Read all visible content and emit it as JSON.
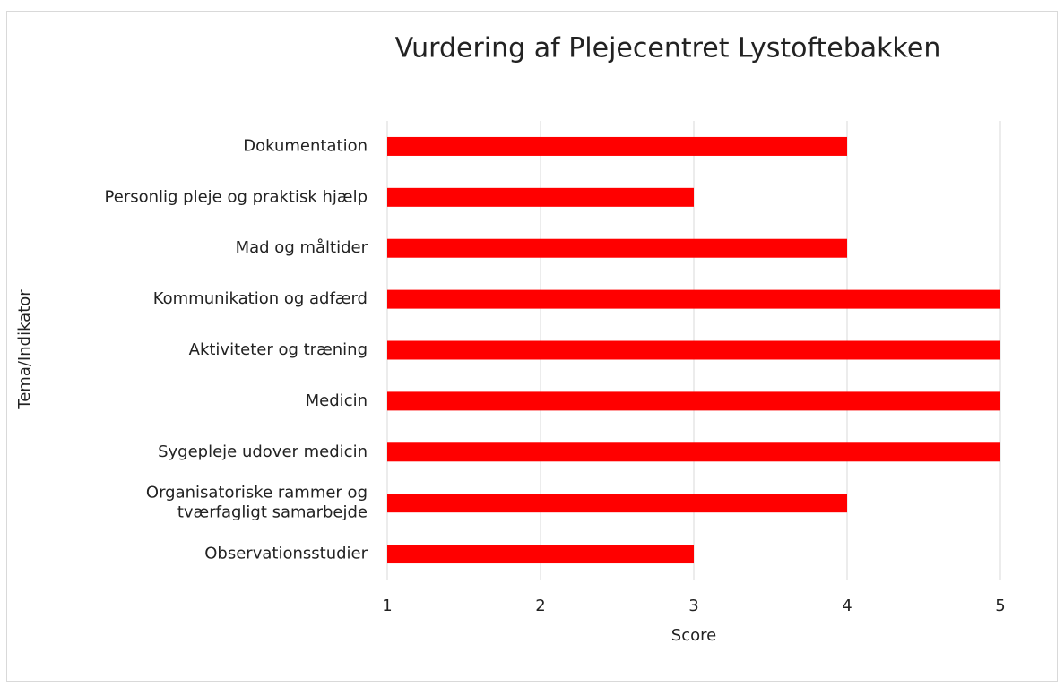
{
  "chart_data": {
    "type": "barh",
    "title": "Vurdering af Plejecentret Lystoftebakken",
    "xlabel": "Score",
    "ylabel": "Tema/Indikator",
    "categories": [
      "Dokumentation",
      "Personlig pleje og praktisk hjælp",
      "Mad og måltider",
      "Kommunikation og adfærd",
      "Aktiviteter og træning",
      "Medicin",
      "Sygepleje udover medicin",
      "Organisatoriske rammer og\ntværfagligt samarbejde",
      "Observationsstudier"
    ],
    "values": [
      4,
      3,
      4,
      5,
      5,
      5,
      5,
      4,
      3
    ],
    "color": "#ff0000",
    "xlim": [
      1,
      5
    ],
    "xticks": [
      1,
      2,
      3,
      4,
      5
    ],
    "grid": true
  }
}
